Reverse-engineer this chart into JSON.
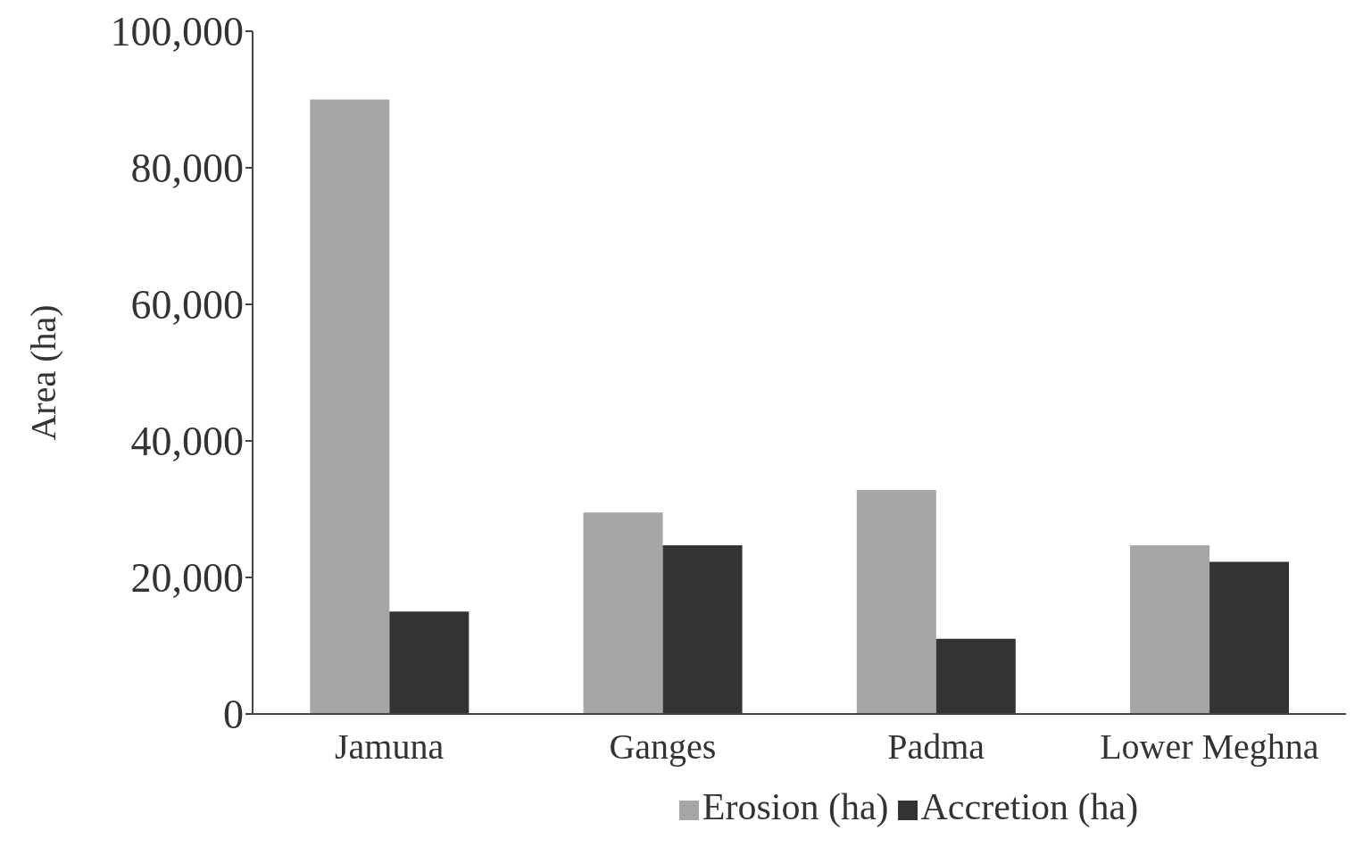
{
  "chart_data": {
    "type": "bar",
    "ylabel": "Area (ha)",
    "categories": [
      "Jamuna",
      "Ganges",
      "Padma",
      "Lower Meghna"
    ],
    "series": [
      {
        "name": "Erosion (ha)",
        "color": "#a6a6a6",
        "values": [
          90000,
          29500,
          32800,
          24700
        ]
      },
      {
        "name": "Accretion (ha)",
        "color": "#333333",
        "values": [
          15000,
          24700,
          11000,
          22300
        ]
      }
    ],
    "ylim": [
      0,
      100000
    ],
    "yticks": [
      {
        "value": 0,
        "label": "0"
      },
      {
        "value": 20000,
        "label": "20,000"
      },
      {
        "value": 40000,
        "label": "40,000"
      },
      {
        "value": 60000,
        "label": "60,000"
      },
      {
        "value": 80000,
        "label": "80,000"
      },
      {
        "value": 100000,
        "label": "100,000"
      }
    ],
    "grid": false,
    "legend": "bottom"
  }
}
